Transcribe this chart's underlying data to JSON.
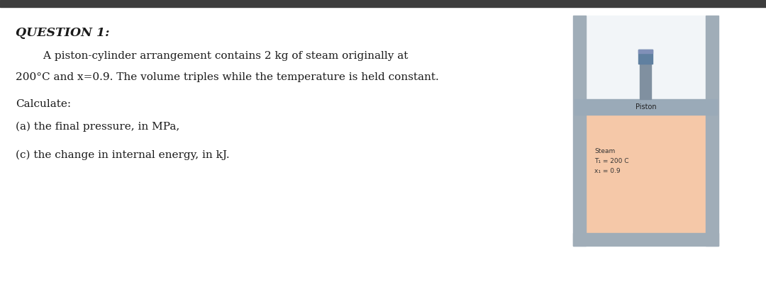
{
  "title": "QUESTION 1:",
  "line1": "        A piston-cylinder arrangement contains 2 kg of steam originally at",
  "line2": "200°C and x=0.9. The volume triples while the temperature is held constant.",
  "line3": "Calculate:",
  "line4": "(a) the final pressure, in MPa,",
  "line5": "(c) the change in internal energy, in kJ.",
  "diagram_label_piston": "Piston",
  "diagram_label_steam": "Steam",
  "diagram_label_T": "T₁ = 200 C",
  "diagram_label_x": "x₁ = 0.9",
  "bg_color": "#ffffff",
  "top_bar_color": "#3d3d3d",
  "wall_color": "#a0adb8",
  "inner_top_color": "#f2f5f8",
  "steam_color": "#f5c8a8",
  "piston_color": "#9aaab8",
  "rod_color": "#8090a0",
  "rod_cap_color": "#6080a0",
  "text_color": "#1a1a1a",
  "diagram_text_color": "#333333"
}
